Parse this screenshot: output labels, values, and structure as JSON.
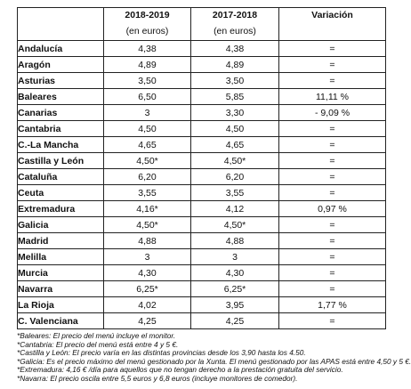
{
  "table": {
    "headers": [
      {
        "title": "",
        "sub": ""
      },
      {
        "title": "2018-2019",
        "sub": "(en euros)"
      },
      {
        "title": "2017-2018",
        "sub": "(en euros)"
      },
      {
        "title": "Variación",
        "sub": ""
      }
    ],
    "rows": [
      {
        "region": "Andalucía",
        "y2018": "4,38",
        "y2017": "4,38",
        "var": "="
      },
      {
        "region": "Aragón",
        "y2018": "4,89",
        "y2017": "4,89",
        "var": "="
      },
      {
        "region": "Asturias",
        "y2018": "3,50",
        "y2017": "3,50",
        "var": "="
      },
      {
        "region": "Baleares",
        "y2018": "6,50",
        "y2017": "5,85",
        "var": "11,11 %"
      },
      {
        "region": "Canarias",
        "y2018": "3",
        "y2017": "3,30",
        "var": "- 9,09 %"
      },
      {
        "region": "Cantabria",
        "y2018": "4,50",
        "y2017": "4,50",
        "var": "="
      },
      {
        "region": "C.-La Mancha",
        "y2018": "4,65",
        "y2017": "4,65",
        "var": "="
      },
      {
        "region": "Castilla y León",
        "y2018": "4,50*",
        "y2017": "4,50*",
        "var": "="
      },
      {
        "region": "Cataluña",
        "y2018": "6,20",
        "y2017": "6,20",
        "var": "="
      },
      {
        "region": "Ceuta",
        "y2018": "3,55",
        "y2017": "3,55",
        "var": "="
      },
      {
        "region": "Extremadura",
        "y2018": "4,16*",
        "y2017": "4,12",
        "var": "0,97 %"
      },
      {
        "region": "Galicia",
        "y2018": "4,50*",
        "y2017": "4,50*",
        "var": "="
      },
      {
        "region": "Madrid",
        "y2018": "4,88",
        "y2017": "4,88",
        "var": "="
      },
      {
        "region": "Melilla",
        "y2018": "3",
        "y2017": "3",
        "var": "="
      },
      {
        "region": "Murcia",
        "y2018": "4,30",
        "y2017": "4,30",
        "var": "="
      },
      {
        "region": "Navarra",
        "y2018": "6,25*",
        "y2017": "6,25*",
        "var": "="
      },
      {
        "region": "La Rioja",
        "y2018": "4,02",
        "y2017": "3,95",
        "var": "1,77 %"
      },
      {
        "region": "C. Valenciana",
        "y2018": "4,25",
        "y2017": "4,25",
        "var": "="
      }
    ]
  },
  "notes": [
    "*Baleares: El precio del menú incluye el monitor.",
    "*Cantabria: El precio del menú está entre 4 y 5 €.",
    "*Castilla y León: El precio varía en las distintas provincias desde los 3,90 hasta los 4.50.",
    "*Galicia: Es el precio máximo del menú gestionado por la Xunta. El menú gestionado por las APAS está entre 4,50 y 5 €.",
    "*Extremadura: 4,16 € /día para aquellos que no tengan derecho a la prestación gratuita del servicio.",
    "*Navarra: El precio oscila entre 5,5 euros y 6,8 euros (incluye monitores de comedor)."
  ]
}
